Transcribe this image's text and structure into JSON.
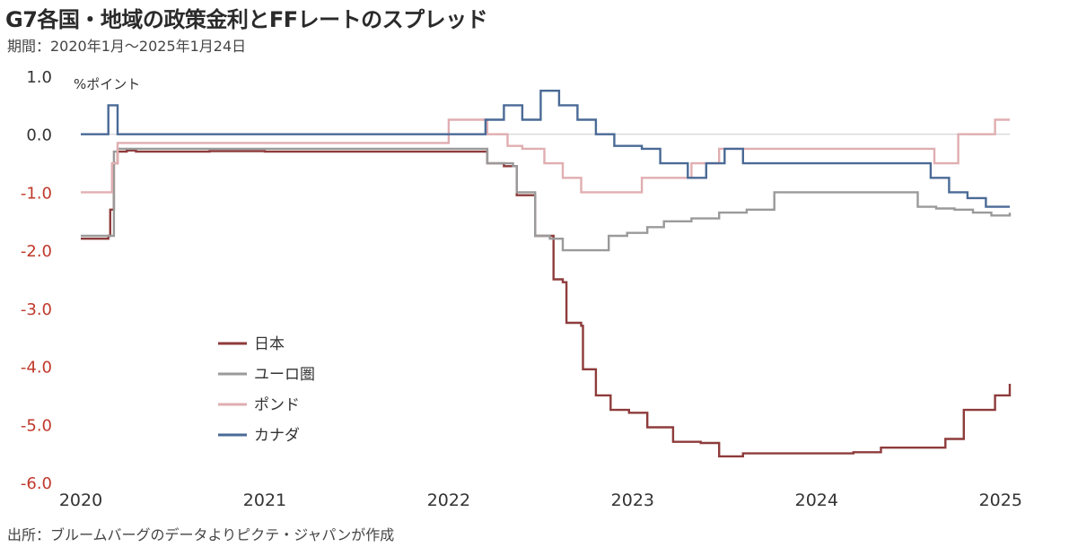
{
  "title": "G7各国・地域の政策金利とFFレートのスプレッド",
  "subtitle": "期間：2020年1月～2025年1月24日",
  "source": "出所：ブルームバーグのデータよりピクテ・ジャパンが作成",
  "chart_data": {
    "type": "line",
    "title": "G7各国・地域の政策金利とFFレートのスプレッド",
    "ylabel": "%ポイント",
    "xlabel": "",
    "ylim": [
      -6.0,
      1.0
    ],
    "xlim": [
      2020.0,
      2025.05
    ],
    "yticks": [
      "1.0",
      "0.0",
      "-1.0",
      "-2.0",
      "-3.0",
      "-4.0",
      "-5.0",
      "-6.0"
    ],
    "yticks_values": [
      1.0,
      0.0,
      -1.0,
      -2.0,
      -3.0,
      -4.0,
      -5.0,
      -6.0
    ],
    "xticks": [
      "2020",
      "2021",
      "2022",
      "2023",
      "2024",
      "2025"
    ],
    "xticks_values": [
      2020,
      2021,
      2022,
      2023,
      2024,
      2025
    ],
    "grid": false,
    "zero_line": true,
    "legend_position": "lower-left",
    "colors": {
      "positive_tick": "#333333",
      "negative_tick": "#c0392b",
      "zero_line": "#cccccc"
    },
    "series": [
      {
        "name": "日本",
        "color": "#8e3b3b",
        "x": [
          2020.0,
          2020.15,
          2020.16,
          2020.17,
          2020.18,
          2020.2,
          2020.21,
          2020.25,
          2020.3,
          2020.7,
          2021.0,
          2021.5,
          2022.0,
          2022.1,
          2022.2,
          2022.21,
          2022.28,
          2022.3,
          2022.35,
          2022.37,
          2022.45,
          2022.47,
          2022.55,
          2022.57,
          2022.62,
          2022.64,
          2022.72,
          2022.73,
          2022.78,
          2022.8,
          2022.87,
          2022.88,
          2022.97,
          2022.98,
          2023.07,
          2023.08,
          2023.2,
          2023.22,
          2023.35,
          2023.37,
          2023.45,
          2023.47,
          2023.58,
          2023.6,
          2023.8,
          2024.0,
          2024.1,
          2024.2,
          2024.3,
          2024.35,
          2024.5,
          2024.65,
          2024.68,
          2024.7,
          2024.8,
          2024.95,
          2024.97,
          2025.05
        ],
        "values": [
          -1.8,
          -1.75,
          -1.3,
          -1.3,
          -0.5,
          -0.3,
          -0.3,
          -0.28,
          -0.3,
          -0.29,
          -0.3,
          -0.3,
          -0.3,
          -0.3,
          -0.3,
          -0.5,
          -0.5,
          -0.55,
          -0.55,
          -1.05,
          -1.05,
          -1.75,
          -1.75,
          -2.5,
          -2.55,
          -3.25,
          -3.3,
          -4.05,
          -4.05,
          -4.5,
          -4.5,
          -4.75,
          -4.75,
          -4.8,
          -4.8,
          -5.05,
          -5.05,
          -5.3,
          -5.3,
          -5.32,
          -5.32,
          -5.55,
          -5.55,
          -5.5,
          -5.5,
          -5.5,
          -5.5,
          -5.48,
          -5.48,
          -5.4,
          -5.4,
          -5.4,
          -5.4,
          -5.25,
          -4.75,
          -4.75,
          -4.5,
          -4.3
        ],
        "values_note": ""
      },
      {
        "name": "ユーロ圏",
        "color": "#9a9a9a",
        "x": [
          2020.0,
          2020.15,
          2020.18,
          2020.2,
          2021.0,
          2022.0,
          2022.2,
          2022.21,
          2022.3,
          2022.35,
          2022.37,
          2022.45,
          2022.47,
          2022.53,
          2022.55,
          2022.6,
          2022.62,
          2022.85,
          2022.87,
          2022.95,
          2022.97,
          2023.07,
          2023.08,
          2023.15,
          2023.17,
          2023.3,
          2023.32,
          2023.45,
          2023.47,
          2023.6,
          2023.62,
          2023.75,
          2023.77,
          2024.0,
          2024.4,
          2024.5,
          2024.55,
          2024.6,
          2024.65,
          2024.67,
          2024.75,
          2024.77,
          2024.85,
          2024.87,
          2024.95,
          2024.97,
          2025.05
        ],
        "values": [
          -1.75,
          -1.75,
          -0.3,
          -0.25,
          -0.25,
          -0.25,
          -0.25,
          -0.5,
          -0.5,
          -0.55,
          -1.0,
          -1.0,
          -1.75,
          -1.75,
          -1.8,
          -1.8,
          -2.0,
          -2.0,
          -1.75,
          -1.75,
          -1.7,
          -1.7,
          -1.6,
          -1.6,
          -1.5,
          -1.5,
          -1.45,
          -1.45,
          -1.35,
          -1.35,
          -1.3,
          -1.3,
          -1.0,
          -1.0,
          -1.0,
          -1.0,
          -1.25,
          -1.25,
          -1.28,
          -1.28,
          -1.3,
          -1.3,
          -1.35,
          -1.35,
          -1.4,
          -1.4,
          -1.35
        ]
      },
      {
        "name": "ポンド",
        "color": "#e0aeb1",
        "x": [
          2020.0,
          2020.15,
          2020.17,
          2020.2,
          2021.0,
          2021.95,
          2022.0,
          2022.2,
          2022.21,
          2022.3,
          2022.32,
          2022.38,
          2022.4,
          2022.5,
          2022.52,
          2022.6,
          2022.62,
          2022.7,
          2022.72,
          2022.8,
          2022.82,
          2022.9,
          2022.92,
          2023.05,
          2023.07,
          2023.15,
          2023.17,
          2023.3,
          2023.32,
          2023.45,
          2023.47,
          2023.55,
          2023.57,
          2024.0,
          2024.5,
          2024.62,
          2024.64,
          2024.75,
          2024.77,
          2024.95,
          2024.97,
          2025.05
        ],
        "values": [
          -1.0,
          -1.0,
          -0.5,
          -0.15,
          -0.15,
          -0.15,
          0.25,
          0.25,
          0.0,
          0.0,
          -0.2,
          -0.2,
          -0.25,
          -0.25,
          -0.5,
          -0.5,
          -0.75,
          -0.75,
          -1.0,
          -1.0,
          -1.0,
          -1.0,
          -1.0,
          -0.75,
          -0.75,
          -0.75,
          -0.75,
          -0.75,
          -0.5,
          -0.5,
          -0.25,
          -0.25,
          -0.25,
          -0.25,
          -0.25,
          -0.25,
          -0.5,
          -0.5,
          0.0,
          0.0,
          0.25,
          0.25
        ]
      },
      {
        "name": "カナダ",
        "color": "#4a6a96",
        "x": [
          2020.0,
          2020.15,
          2020.17,
          2020.2,
          2021.0,
          2022.0,
          2022.2,
          2022.22,
          2022.3,
          2022.32,
          2022.4,
          2022.42,
          2022.5,
          2022.52,
          2022.6,
          2022.62,
          2022.7,
          2022.72,
          2022.8,
          2022.82,
          2022.9,
          2022.92,
          2023.0,
          2023.05,
          2023.1,
          2023.15,
          2023.2,
          2023.3,
          2023.32,
          2023.4,
          2023.45,
          2023.5,
          2023.55,
          2023.6,
          2024.0,
          2024.3,
          2024.5,
          2024.6,
          2024.62,
          2024.7,
          2024.72,
          2024.8,
          2024.82,
          2024.9,
          2024.92,
          2025.0,
          2025.05
        ],
        "values": [
          0.0,
          0.5,
          0.5,
          0.0,
          0.0,
          0.0,
          0.25,
          0.25,
          0.5,
          0.5,
          0.25,
          0.25,
          0.75,
          0.75,
          0.5,
          0.5,
          0.25,
          0.25,
          0.0,
          0.0,
          -0.2,
          -0.2,
          -0.2,
          -0.25,
          -0.25,
          -0.5,
          -0.5,
          -0.75,
          -0.75,
          -0.5,
          -0.5,
          -0.25,
          -0.25,
          -0.5,
          -0.5,
          -0.5,
          -0.5,
          -0.5,
          -0.75,
          -0.75,
          -1.0,
          -1.0,
          -1.1,
          -1.1,
          -1.25,
          -1.25,
          -1.25
        ]
      }
    ]
  }
}
